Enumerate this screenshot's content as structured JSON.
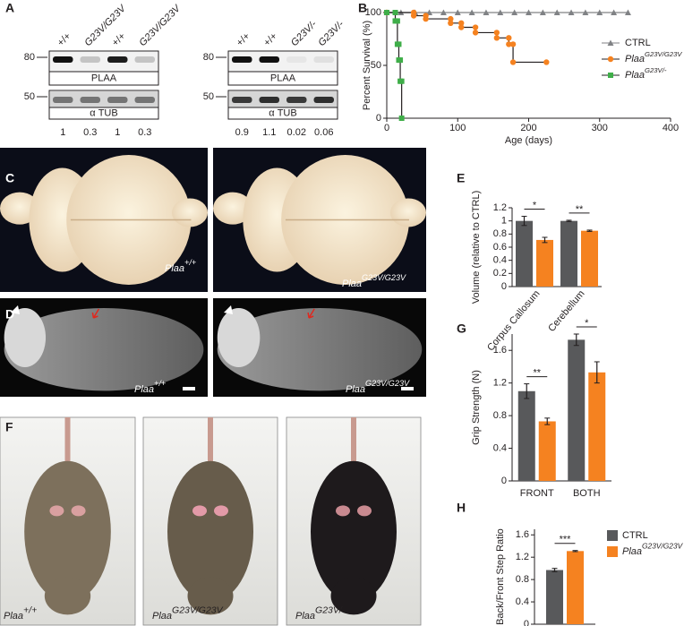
{
  "panel_labels": [
    "A",
    "B",
    "C",
    "D",
    "E",
    "F",
    "G",
    "H"
  ],
  "blots": [
    {
      "lanes": [
        "+/+",
        "G23V/G23V",
        "+/+",
        "G23V/G23V"
      ],
      "markers": [
        80,
        50
      ],
      "bands": [
        "PLAA",
        "α TUB"
      ],
      "quantities": [
        1,
        0.3,
        1,
        0.3
      ]
    },
    {
      "lanes": [
        "+/+",
        "+/+",
        "G23V/-",
        "G23V/-"
      ],
      "markers": [
        80,
        50
      ],
      "bands": [
        "PLAA",
        "α TUB"
      ],
      "quantities": [
        0.9,
        1.1,
        0.02,
        0.06
      ]
    }
  ],
  "photo_labels": {
    "C": [
      {
        "text": "Plaa",
        "sup": "+/+"
      },
      {
        "text": "Plaa",
        "sup": "G23V/G23V"
      }
    ],
    "D": [
      {
        "text": "Plaa",
        "sup": "+/+"
      },
      {
        "text": "Plaa",
        "sup": "G23V/G23V"
      }
    ],
    "F": [
      {
        "text": "Plaa",
        "sup": "+/+"
      },
      {
        "text": "Plaa",
        "sup": "G23V/G23V"
      },
      {
        "text": "Plaa",
        "sup": "G23V/-"
      }
    ]
  },
  "chart_data": [
    {
      "type": "line",
      "x_label": "Age (days)",
      "y_label": "Percent Survival (%)",
      "xlim": [
        0,
        400
      ],
      "xticks": [
        0,
        100,
        200,
        300,
        400
      ],
      "ylim": [
        0,
        100
      ],
      "yticks": [
        0,
        50,
        100
      ],
      "series": [
        {
          "name": "CTRL",
          "color": "#808285",
          "marker": "triangle",
          "x": [
            0,
            20,
            40,
            60,
            80,
            100,
            120,
            140,
            160,
            180,
            200,
            220,
            240,
            260,
            280,
            300,
            320,
            340
          ],
          "values": [
            100,
            100,
            100,
            100,
            100,
            100,
            100,
            100,
            100,
            100,
            100,
            100,
            100,
            100,
            100,
            100,
            100,
            100
          ]
        },
        {
          "name": "Plaa",
          "name_sup": "G23V/G23V",
          "color": "#f58220",
          "marker": "circle",
          "x": [
            0,
            38,
            38,
            55,
            55,
            90,
            90,
            105,
            105,
            125,
            125,
            155,
            155,
            172,
            172,
            178,
            178,
            225
          ],
          "values": [
            100,
            100,
            97,
            97,
            94,
            94,
            90,
            90,
            86,
            86,
            81,
            81,
            76,
            76,
            70,
            70,
            53,
            53
          ]
        },
        {
          "name": "Plaa",
          "name_sup": "G23V/-",
          "color": "#3fae49",
          "marker": "square",
          "x": [
            0,
            12,
            12,
            15,
            15,
            17,
            17,
            19,
            19,
            21,
            21
          ],
          "values": [
            100,
            100,
            92,
            92,
            70,
            70,
            55,
            55,
            35,
            35,
            0
          ]
        }
      ]
    },
    {
      "type": "bar",
      "y_label": "Volume (relative to CTRL)",
      "categories": [
        "Corpus Callosum",
        "Cerebellum"
      ],
      "ylim": [
        0,
        1.2
      ],
      "yticks": [
        0,
        0.2,
        0.4,
        0.6,
        0.8,
        1,
        1.2
      ],
      "series": [
        {
          "color": "#58595b",
          "values": [
            1.0,
            1.0
          ],
          "errors": [
            0.07,
            0.01
          ]
        },
        {
          "color": "#f58220",
          "values": [
            0.71,
            0.85
          ],
          "errors": [
            0.04,
            0.01
          ]
        }
      ],
      "annotations": [
        "*",
        "**"
      ]
    },
    {
      "type": "bar",
      "y_label": "Grip Strength (N)",
      "categories": [
        "FRONT",
        "BOTH"
      ],
      "ylim": [
        0,
        1.8
      ],
      "yticks": [
        0,
        0.4,
        0.8,
        1.2,
        1.6
      ],
      "series": [
        {
          "color": "#58595b",
          "values": [
            1.1,
            1.73
          ],
          "errors": [
            0.09,
            0.07
          ]
        },
        {
          "color": "#f58220",
          "values": [
            0.73,
            1.33
          ],
          "errors": [
            0.04,
            0.13
          ]
        }
      ],
      "annotations": [
        "**",
        "*"
      ]
    },
    {
      "type": "bar",
      "y_label": "Back/Front Step Ratio",
      "categories": [
        null
      ],
      "ylim": [
        0,
        1.7
      ],
      "yticks": [
        0,
        0.4,
        0.8,
        1.2,
        1.6
      ],
      "series": [
        {
          "name": "CTRL",
          "color": "#58595b",
          "values": [
            0.97
          ],
          "errors": [
            0.03
          ]
        },
        {
          "name": "Plaa",
          "name_sup": "G23V/G23V",
          "color": "#f58220",
          "values": [
            1.31
          ],
          "errors": [
            0.01
          ]
        }
      ],
      "annotations": [
        "***"
      ]
    }
  ]
}
